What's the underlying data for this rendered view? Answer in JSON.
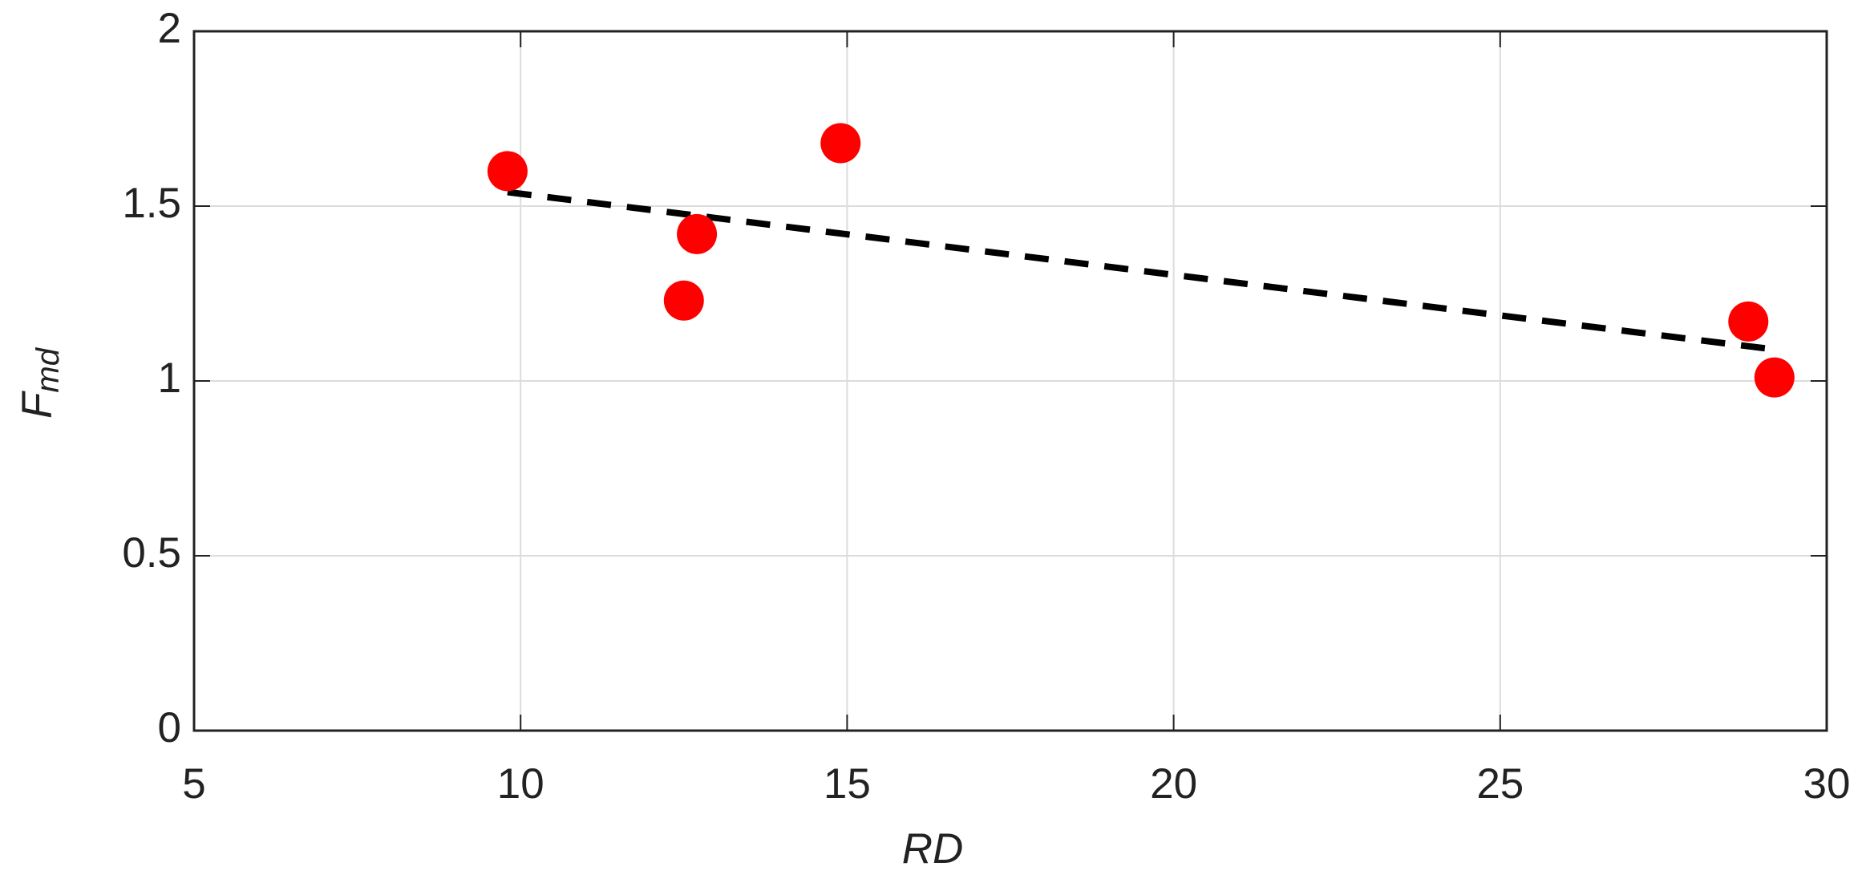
{
  "chart_data": {
    "type": "scatter",
    "xlabel": "RD",
    "ylabel": "F",
    "ylabel_subscript": "md",
    "x": [
      9.8,
      12.5,
      12.7,
      14.9,
      28.8,
      29.2
    ],
    "values": [
      1.6,
      1.23,
      1.42,
      1.68,
      1.17,
      1.01
    ],
    "color": "#ff0000",
    "trend": {
      "x": [
        9.8,
        29.2
      ],
      "values": [
        1.54,
        1.09
      ],
      "color": "#000000",
      "style": "dashed"
    },
    "xlim": [
      5,
      30
    ],
    "xticks": [
      5,
      10,
      15,
      20,
      25,
      30
    ],
    "ylim": [
      0,
      2
    ],
    "yticks": [
      0,
      0.5,
      1,
      1.5,
      2
    ],
    "grid": true
  }
}
